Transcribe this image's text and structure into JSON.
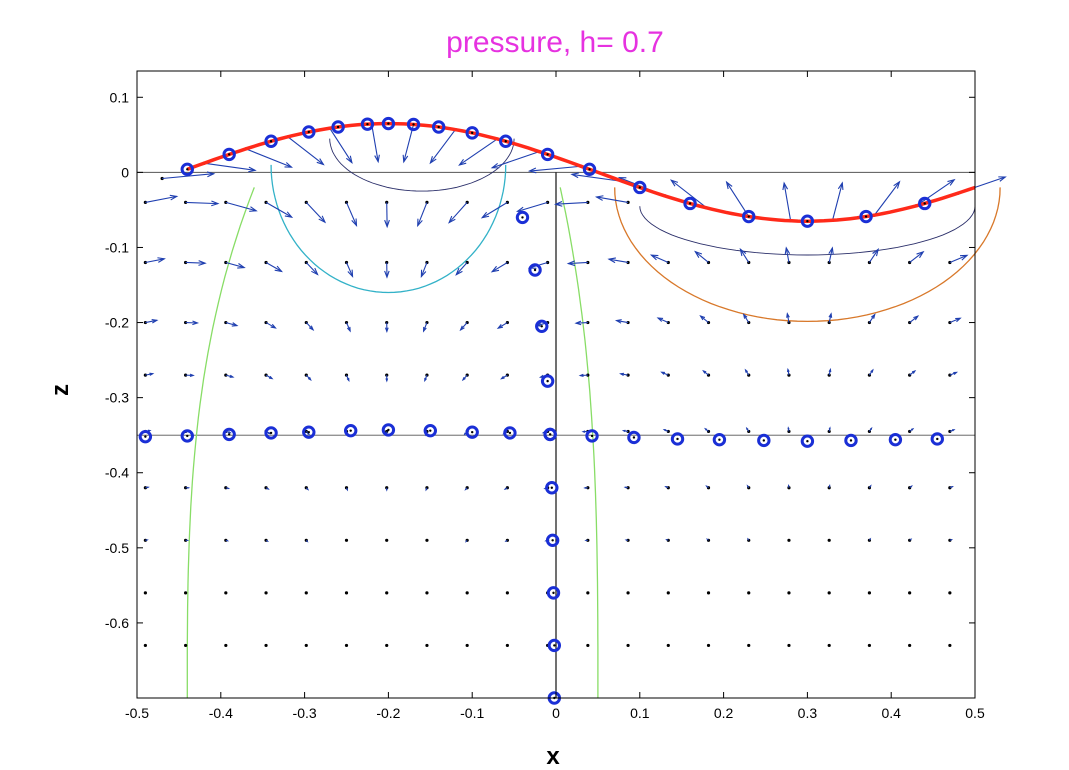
{
  "chart_data": {
    "type": "vector-field",
    "title": "pressure,   h= 0.7",
    "xlabel": "x",
    "ylabel": "z",
    "xlim": [
      -0.5,
      0.5
    ],
    "ylim": [
      -0.7,
      0.135
    ],
    "xticks": [
      -0.5,
      -0.4,
      -0.3,
      -0.2,
      -0.1,
      0,
      0.1,
      0.2,
      0.3,
      0.4,
      0.5
    ],
    "xtick_labels": [
      "-0.5",
      "-0.4",
      "-0.3",
      "-0.2",
      "-0.1",
      "0",
      "0.1",
      "0.2",
      "0.3",
      "0.4",
      "0.5"
    ],
    "yticks": [
      0.1,
      0,
      -0.1,
      -0.2,
      -0.3,
      -0.4,
      -0.5,
      -0.6
    ],
    "ytick_labels": [
      "0.1",
      "0",
      "-0.1",
      "-0.2",
      "-0.3",
      "-0.4",
      "-0.5",
      "-0.6"
    ],
    "surface": {
      "name": "free surface",
      "amplitude": 0.065,
      "crest_x": -0.2,
      "wavelength": 1.0,
      "color": "#ff2a1a"
    },
    "reference_lines": [
      {
        "name": "still water level",
        "z": 0
      },
      {
        "name": "particle row",
        "z": -0.35
      },
      {
        "name": "particle column",
        "x": 0
      }
    ],
    "surface_markers_x": [
      -0.44,
      -0.39,
      -0.34,
      -0.295,
      -0.26,
      -0.225,
      -0.2,
      -0.17,
      -0.14,
      -0.1,
      -0.06,
      -0.01,
      0.04,
      0.1,
      0.16,
      0.23,
      0.3,
      0.37,
      0.44
    ],
    "row_markers": [
      [
        -0.49,
        -0.352
      ],
      [
        -0.44,
        -0.351
      ],
      [
        -0.39,
        -0.349
      ],
      [
        -0.34,
        -0.347
      ],
      [
        -0.295,
        -0.346
      ],
      [
        -0.245,
        -0.344
      ],
      [
        -0.2,
        -0.343
      ],
      [
        -0.15,
        -0.344
      ],
      [
        -0.1,
        -0.346
      ],
      [
        -0.055,
        -0.347
      ],
      [
        -0.007,
        -0.349
      ],
      [
        0.043,
        -0.351
      ],
      [
        0.093,
        -0.353
      ],
      [
        0.145,
        -0.355
      ],
      [
        0.195,
        -0.356
      ],
      [
        0.248,
        -0.357
      ],
      [
        0.3,
        -0.358
      ],
      [
        0.352,
        -0.357
      ],
      [
        0.405,
        -0.356
      ],
      [
        0.455,
        -0.355
      ]
    ],
    "column_markers": [
      [
        -0.04,
        -0.06
      ],
      [
        -0.025,
        -0.13
      ],
      [
        -0.017,
        -0.205
      ],
      [
        -0.01,
        -0.278
      ],
      [
        -0.007,
        -0.349
      ],
      [
        -0.005,
        -0.42
      ],
      [
        -0.004,
        -0.49
      ],
      [
        -0.003,
        -0.56
      ],
      [
        -0.002,
        -0.63
      ],
      [
        -0.002,
        -0.7
      ]
    ],
    "streamlines": [
      {
        "name": "cyan path",
        "color": "#33b2c8",
        "cx": -0.2,
        "r": 0.14,
        "top": 0.01
      },
      {
        "name": "orange path",
        "color": "#d8782a",
        "cx": 0.3,
        "r": 0.23,
        "top": -0.02
      },
      {
        "name": "green left",
        "color": "#88dd66",
        "x_top": -0.36,
        "x_bottom": -0.44
      },
      {
        "name": "green right",
        "color": "#88dd66",
        "x_top": 0.005,
        "x_bottom": 0.05
      }
    ],
    "field": {
      "k": 6.2832,
      "x_start": -0.49,
      "x_step": 0.048,
      "x_count": 21,
      "z_levels": [
        -0.04,
        -0.12,
        -0.2,
        -0.27,
        -0.345,
        -0.42,
        -0.49,
        -0.56,
        -0.63
      ],
      "arrow_color": "#1f3fb0"
    },
    "colors": {
      "arrow": "#1f3fb0",
      "marker": "#1a2fd6",
      "title": "#e632e0",
      "axis": "#000000"
    }
  }
}
